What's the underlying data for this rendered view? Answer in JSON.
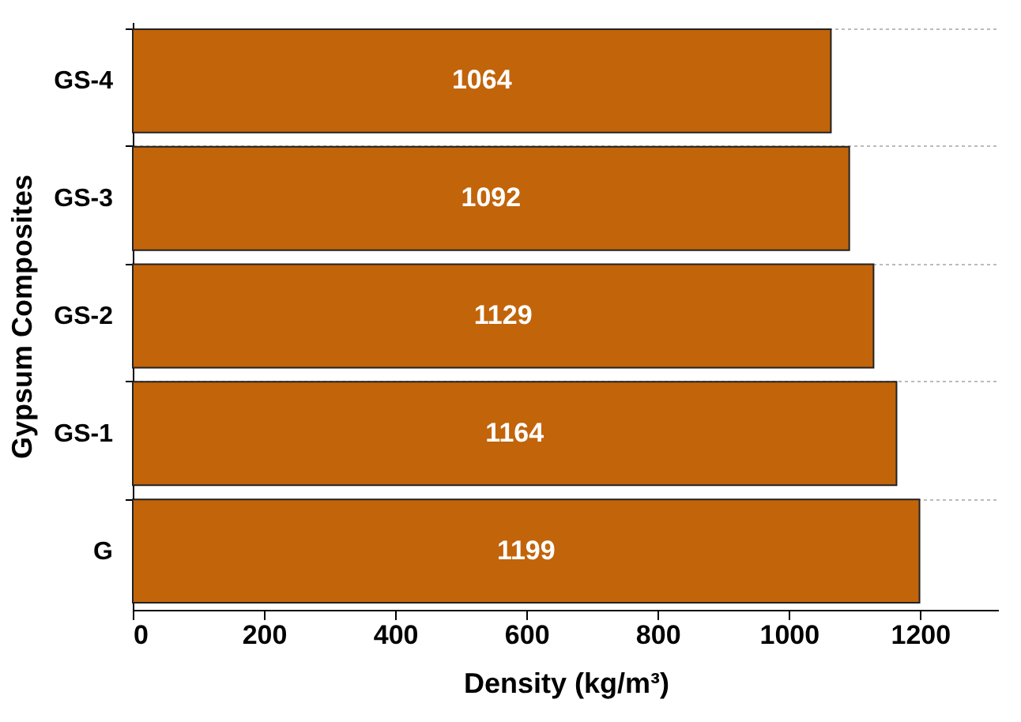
{
  "chart_data": {
    "type": "bar",
    "orientation": "horizontal",
    "categories": [
      "GS-4",
      "GS-3",
      "GS-2",
      "GS-1",
      "G"
    ],
    "values": [
      1064,
      1092,
      1129,
      1164,
      1199
    ],
    "color": "#c2640a",
    "xlabel": "Density (kg/m³)",
    "ylabel": "Gypsum Composites",
    "xlim": [
      0,
      1320
    ],
    "xticks": [
      0,
      200,
      400,
      600,
      800,
      1000,
      1200
    ],
    "grid": "y",
    "data_labels": true
  }
}
